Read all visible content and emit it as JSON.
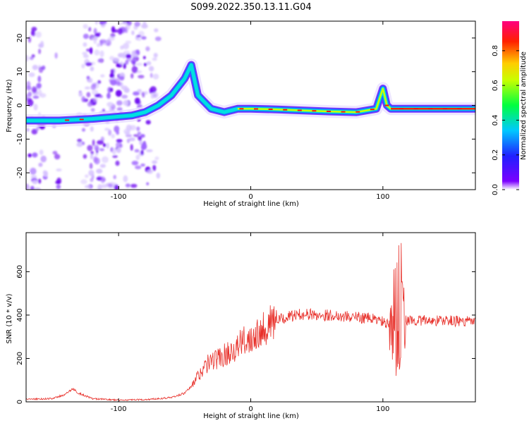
{
  "title": "S099.2022.350.13.11.G04",
  "chart_data": [
    {
      "type": "heatmap",
      "xlabel": "Height of straight line (km)",
      "ylabel": "Frequency (Hz)",
      "xlim": [
        -170,
        170
      ],
      "ylim": [
        -25,
        25
      ],
      "x_ticks": [
        -100,
        0,
        100
      ],
      "y_ticks": [
        -20,
        -10,
        0,
        10,
        20
      ],
      "colorbar": {
        "label": "Normalized spectral amplitude",
        "range": [
          0,
          0.97
        ],
        "ticks": [
          0.0,
          0.2,
          0.4,
          0.6,
          0.8
        ]
      },
      "ridge": {
        "description_points_x": [
          -170,
          -145,
          -120,
          -90,
          -80,
          -70,
          -60,
          -50,
          -45,
          -40,
          -30,
          -20,
          -10,
          0,
          20,
          40,
          60,
          80,
          95,
          100,
          103,
          106,
          120,
          140,
          170
        ],
        "frequency_hz": [
          -4.5,
          -4.5,
          -4,
          -3,
          -2,
          0,
          3,
          8,
          12,
          3,
          -1,
          -2,
          -1,
          -1,
          -1.2,
          -1.5,
          -1.8,
          -2,
          -1,
          5,
          0,
          -1,
          -1,
          -1,
          -1
        ]
      }
    },
    {
      "type": "line",
      "xlabel": "Height of straight line (km)",
      "ylabel": "SNR (10 * v/v)",
      "xlim": [
        -170,
        170
      ],
      "ylim": [
        0,
        780
      ],
      "x_ticks": [
        -100,
        0,
        100
      ],
      "y_ticks": [
        0,
        200,
        400,
        600
      ],
      "line_color": "#e8312b",
      "series": [
        {
          "x": [
            -170,
            -150,
            -140,
            -135,
            -130,
            -120,
            -100,
            -80,
            -60,
            -50,
            -45,
            -40,
            -35,
            -30,
            -25,
            -20,
            -15,
            -10,
            -5,
            0,
            5,
            10,
            20,
            30,
            40,
            50,
            60,
            70,
            80,
            90,
            95,
            100,
            105,
            108,
            110,
            112,
            114,
            116,
            120,
            130,
            140,
            150,
            160,
            170
          ],
          "values": [
            12,
            15,
            35,
            60,
            40,
            15,
            8,
            10,
            20,
            40,
            70,
            120,
            160,
            190,
            200,
            215,
            235,
            255,
            280,
            300,
            325,
            345,
            375,
            395,
            405,
            400,
            400,
            395,
            390,
            385,
            380,
            370,
            350,
            300,
            250,
            150,
            420,
            380,
            375,
            375,
            375,
            375,
            370,
            370
          ]
        }
      ]
    }
  ]
}
